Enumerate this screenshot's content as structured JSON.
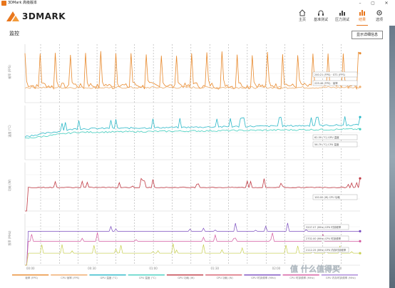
{
  "window": {
    "title": "3DMark 高级版本",
    "min": "–",
    "max": "▢",
    "close": "✕"
  },
  "logo": {
    "text": "3DMARK"
  },
  "nav": [
    {
      "label": "主页",
      "icon": "home-icon"
    },
    {
      "label": "基准测试",
      "icon": "headset-icon"
    },
    {
      "label": "压力测试",
      "icon": "bar-chart-icon"
    },
    {
      "label": "结果",
      "icon": "results-chart-icon",
      "active": true
    },
    {
      "label": "选项",
      "icon": "gear-icon"
    }
  ],
  "monitor": {
    "heading": "监控",
    "detail_button": "显示详细信息"
  },
  "chart_data": [
    {
      "type": "line",
      "ylabel": "帧率 (FPS)",
      "yticks": [
        "",
        "",
        ""
      ],
      "color": "#e8892c",
      "series": [
        {
          "name": "Frame rate (FPS)",
          "base": 200,
          "peak": 280,
          "period": 9
        },
        {
          "name": "",
          "base": 190,
          "peak": 205,
          "period": 9
        }
      ],
      "ylim": [
        150,
        300
      ],
      "tooltips": [
        "240.21 (FPS) · GT1 (FPS)",
        "229.46 (FPS) · 帧率"
      ]
    },
    {
      "type": "line",
      "ylabel": "温度 (°C)",
      "color": "#2bb8c8",
      "series": [
        {
          "name": "GPU temperature (°C)",
          "start": 52,
          "end": 63
        },
        {
          "name": "CPU temperature (°C)",
          "start": 50,
          "end": 59
        }
      ],
      "ylim": [
        30,
        80
      ],
      "tooltips": [
        "62.59 (°C) GPU 温度",
        "56.79 (°C) CPU 温度"
      ]
    },
    {
      "type": "line",
      "ylabel": "功耗 (W)",
      "color": "#c03a44",
      "series": [
        {
          "name": "CPU power (W)",
          "base": 100
        }
      ],
      "ylim": [
        0,
        200
      ],
      "tooltips": [
        "100.00 (W) CPU 功耗"
      ]
    },
    {
      "type": "line",
      "ylabel": "频率 (MHz)",
      "series": [
        {
          "name": "GPU clock frequency (MHz)",
          "color": "#7b4dbf",
          "value": 3200
        },
        {
          "name": "CPU clock frequency (MHz)",
          "color": "#d45aa0",
          "value": 2700
        },
        {
          "name": "GPU memory clock (MHz)",
          "color": "#c8d050",
          "value": 2100
        }
      ],
      "ylim": [
        1500,
        4000
      ],
      "tooltips": [
        "3207.07 (MHz) GPU 时钟频率",
        "2702.00 (MHz) CPU 时钟频率",
        "2112.25 (MHz) GPU 内存时钟频率"
      ]
    }
  ],
  "x_ticks": [
    "00:00",
    "00:30",
    "01:00",
    "01:30",
    "02:00",
    "02:30"
  ],
  "legend": [
    {
      "label": "帧率 (FPS)",
      "color": "#e8892c"
    },
    {
      "label": "CPU 帧率 (FPS)",
      "color": "#f0a868"
    },
    {
      "label": "GPU 温度 (°C)",
      "color": "#2bb8c8"
    },
    {
      "label": "CPU 温度 (°C)",
      "color": "#46d0c0"
    },
    {
      "label": "GPU 功耗 (W)",
      "color": "#c03a44"
    },
    {
      "label": "CPU 功耗 (W)",
      "color": "#d86070"
    },
    {
      "label": "GPU 时钟频率 (MHz)",
      "color": "#7b4dbf"
    },
    {
      "label": "CPU 时钟频率 (MHz)",
      "color": "#d45aa0"
    },
    {
      "label": "GPU 内存时钟频率 (MHz)",
      "color": "#a884d8"
    }
  ],
  "watermark": {
    "text": "值 什么值得买"
  }
}
